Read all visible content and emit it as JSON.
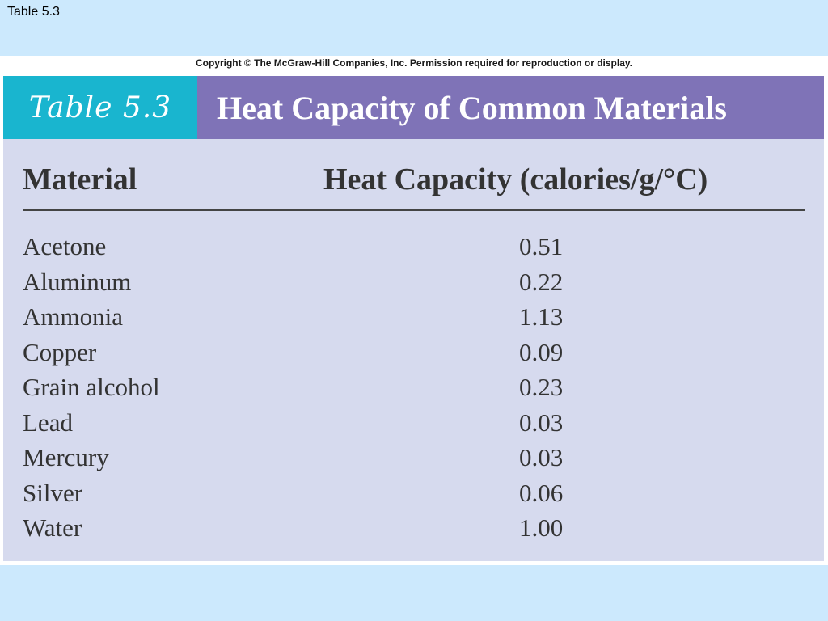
{
  "slide": {
    "caption": "Table 5.3"
  },
  "figure": {
    "copyright": "Copyright © The McGraw-Hill Companies, Inc. Permission required for reproduction or display.",
    "table_number": "Table 5.3",
    "table_title": "Heat Capacity of Common Materials",
    "columns": [
      "Material",
      "Heat Capacity (calories/g/°C)"
    ],
    "rows": [
      {
        "material": "Acetone",
        "heat_capacity": "0.51"
      },
      {
        "material": "Aluminum",
        "heat_capacity": "0.22"
      },
      {
        "material": "Ammonia",
        "heat_capacity": "1.13"
      },
      {
        "material": "Copper",
        "heat_capacity": "0.09"
      },
      {
        "material": "Grain alcohol",
        "heat_capacity": "0.23"
      },
      {
        "material": "Lead",
        "heat_capacity": "0.03"
      },
      {
        "material": "Mercury",
        "heat_capacity": "0.03"
      },
      {
        "material": "Silver",
        "heat_capacity": "0.06"
      },
      {
        "material": "Water",
        "heat_capacity": "1.00"
      }
    ]
  },
  "colors": {
    "background": "#cce9fd",
    "panel": "#d6daee",
    "title_number_bg": "#19b5cf",
    "title_text_bg": "#7f73b7"
  }
}
